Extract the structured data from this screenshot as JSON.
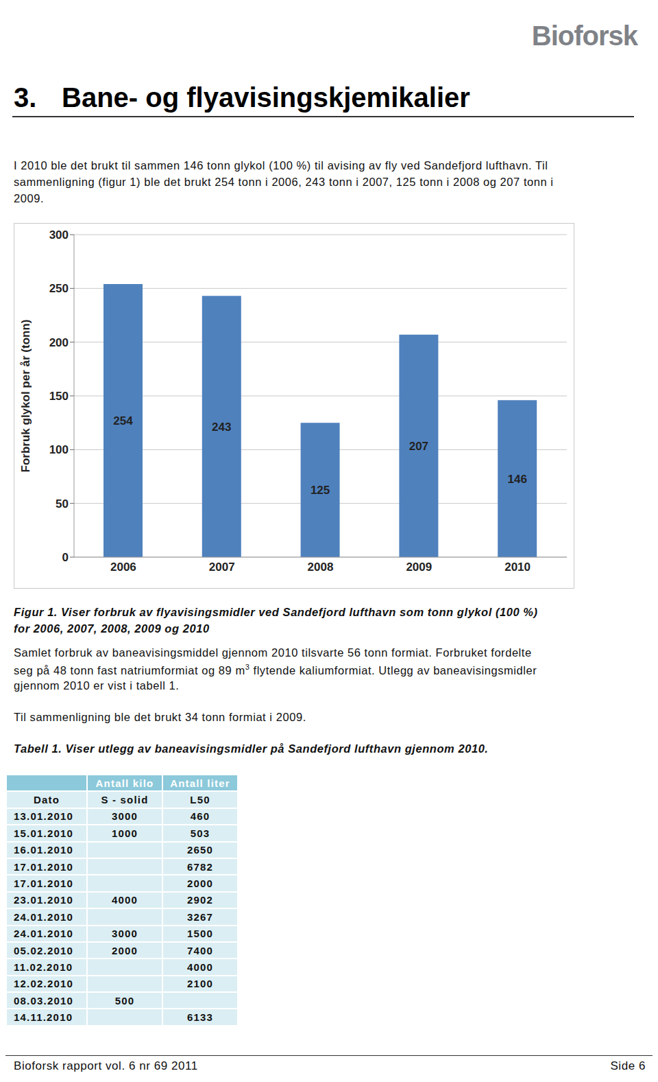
{
  "logo": "Bioforsk",
  "heading": {
    "number": "3.",
    "title": "Bane- og flyavisingskjemikalier"
  },
  "intro": [
    "I 2010 ble det brukt til sammen 146 tonn glykol (100 %) til avising av fly ved Sandefjord lufthavn. Til",
    "sammenligning (figur 1) ble det brukt 254 tonn i 2006, 243 tonn i 2007, 125 tonn i 2008 og 207 tonn i",
    "2009."
  ],
  "chart_data": {
    "type": "bar",
    "y_label": "Forbruk glykol per år (tonn)",
    "categories": [
      "2006",
      "2007",
      "2008",
      "2009",
      "2010"
    ],
    "values": [
      254,
      243,
      125,
      207,
      146
    ],
    "color": "#4f81bd",
    "ylim": [
      0,
      300
    ],
    "yticks": [
      0,
      50,
      100,
      150,
      200,
      250,
      300
    ],
    "grid": true,
    "data_labels": true
  },
  "figure_caption": [
    "Figur 1. Viser forbruk av flyavisingsmidler ved Sandefjord lufthavn som tonn glykol (100 %)",
    "for 2006, 2007, 2008, 2009 og 2010"
  ],
  "paragraph2": [
    [
      {
        "text": "Samlet forbruk av baneavisingsmiddel gjennom 2010 tilsvarte 56 tonn formiat. Forbruket fordelte"
      }
    ],
    [
      {
        "text": "seg på 48 tonn fast natriumformiat og 89 m"
      },
      {
        "text": "3",
        "sup": true
      },
      {
        "text": " flytende kaliumformiat. Utlegg av baneavisingsmidler"
      }
    ],
    [
      {
        "text": "gjennom 2010 er vist i tabell 1."
      }
    ]
  ],
  "paragraph3": "Til sammenligning ble det brukt 34 tonn formiat i 2009.",
  "table_caption": "Tabell 1. Viser utlegg av baneavisingsmidler på Sandefjord lufthavn gjennom 2010.",
  "table": {
    "header": [
      null,
      "Antall kilo",
      "Antall liter"
    ],
    "subheader": [
      "Dato",
      "S - solid",
      "L50"
    ],
    "rows": [
      [
        "13.01.2010",
        3000,
        460
      ],
      [
        "15.01.2010",
        1000,
        503
      ],
      [
        "16.01.2010",
        null,
        2650
      ],
      [
        "17.01.2010",
        null,
        6782
      ],
      [
        "17.01.2010",
        null,
        2000
      ],
      [
        "23.01.2010",
        4000,
        2902
      ],
      [
        "24.01.2010",
        null,
        3267
      ],
      [
        "24.01.2010",
        3000,
        1500
      ],
      [
        "05.02.2010",
        2000,
        7400
      ],
      [
        "11.02.2010",
        null,
        4000
      ],
      [
        "12.02.2010",
        null,
        2100
      ],
      [
        "08.03.2010",
        500,
        null
      ],
      [
        "14.11.2010",
        null,
        6133
      ]
    ]
  },
  "footer": {
    "left": "Bioforsk rapport vol. 6 nr 69 2011",
    "right": "Side 6"
  }
}
